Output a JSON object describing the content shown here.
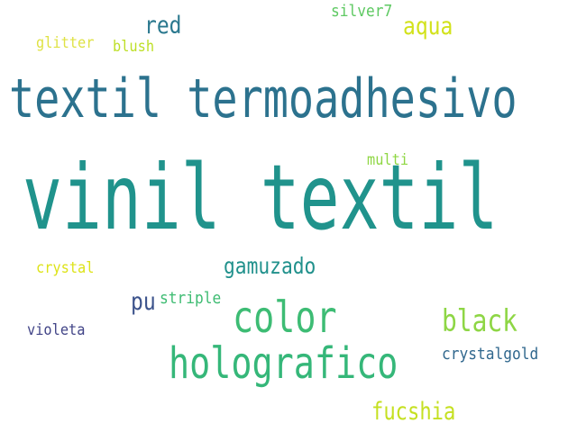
{
  "words": [
    {
      "text": "glitter",
      "color": "#dfe244"
    },
    {
      "text": "blush",
      "color": "#bddf26"
    },
    {
      "text": "red",
      "color": "#2a788e"
    },
    {
      "text": "silver7",
      "color": "#5ec962"
    },
    {
      "text": "aqua",
      "color": "#d2e21b"
    },
    {
      "text": "textil termoadhesivo",
      "color": "#2c728e"
    },
    {
      "text": "multi",
      "color": "#8fd744"
    },
    {
      "text": "vinil textil",
      "color": "#20938c"
    },
    {
      "text": "crystal",
      "color": "#dde318"
    },
    {
      "text": "gamuzado",
      "color": "#21918c"
    },
    {
      "text": "pu",
      "color": "#3b528b"
    },
    {
      "text": "striple",
      "color": "#3fbc73"
    },
    {
      "text": "color",
      "color": "#3dbc74"
    },
    {
      "text": "black",
      "color": "#8ed645"
    },
    {
      "text": "violeta",
      "color": "#414487"
    },
    {
      "text": "holografico",
      "color": "#35b779"
    },
    {
      "text": "crystalgold",
      "color": "#31688e"
    },
    {
      "text": "fucshia",
      "color": "#c5e021"
    }
  ]
}
